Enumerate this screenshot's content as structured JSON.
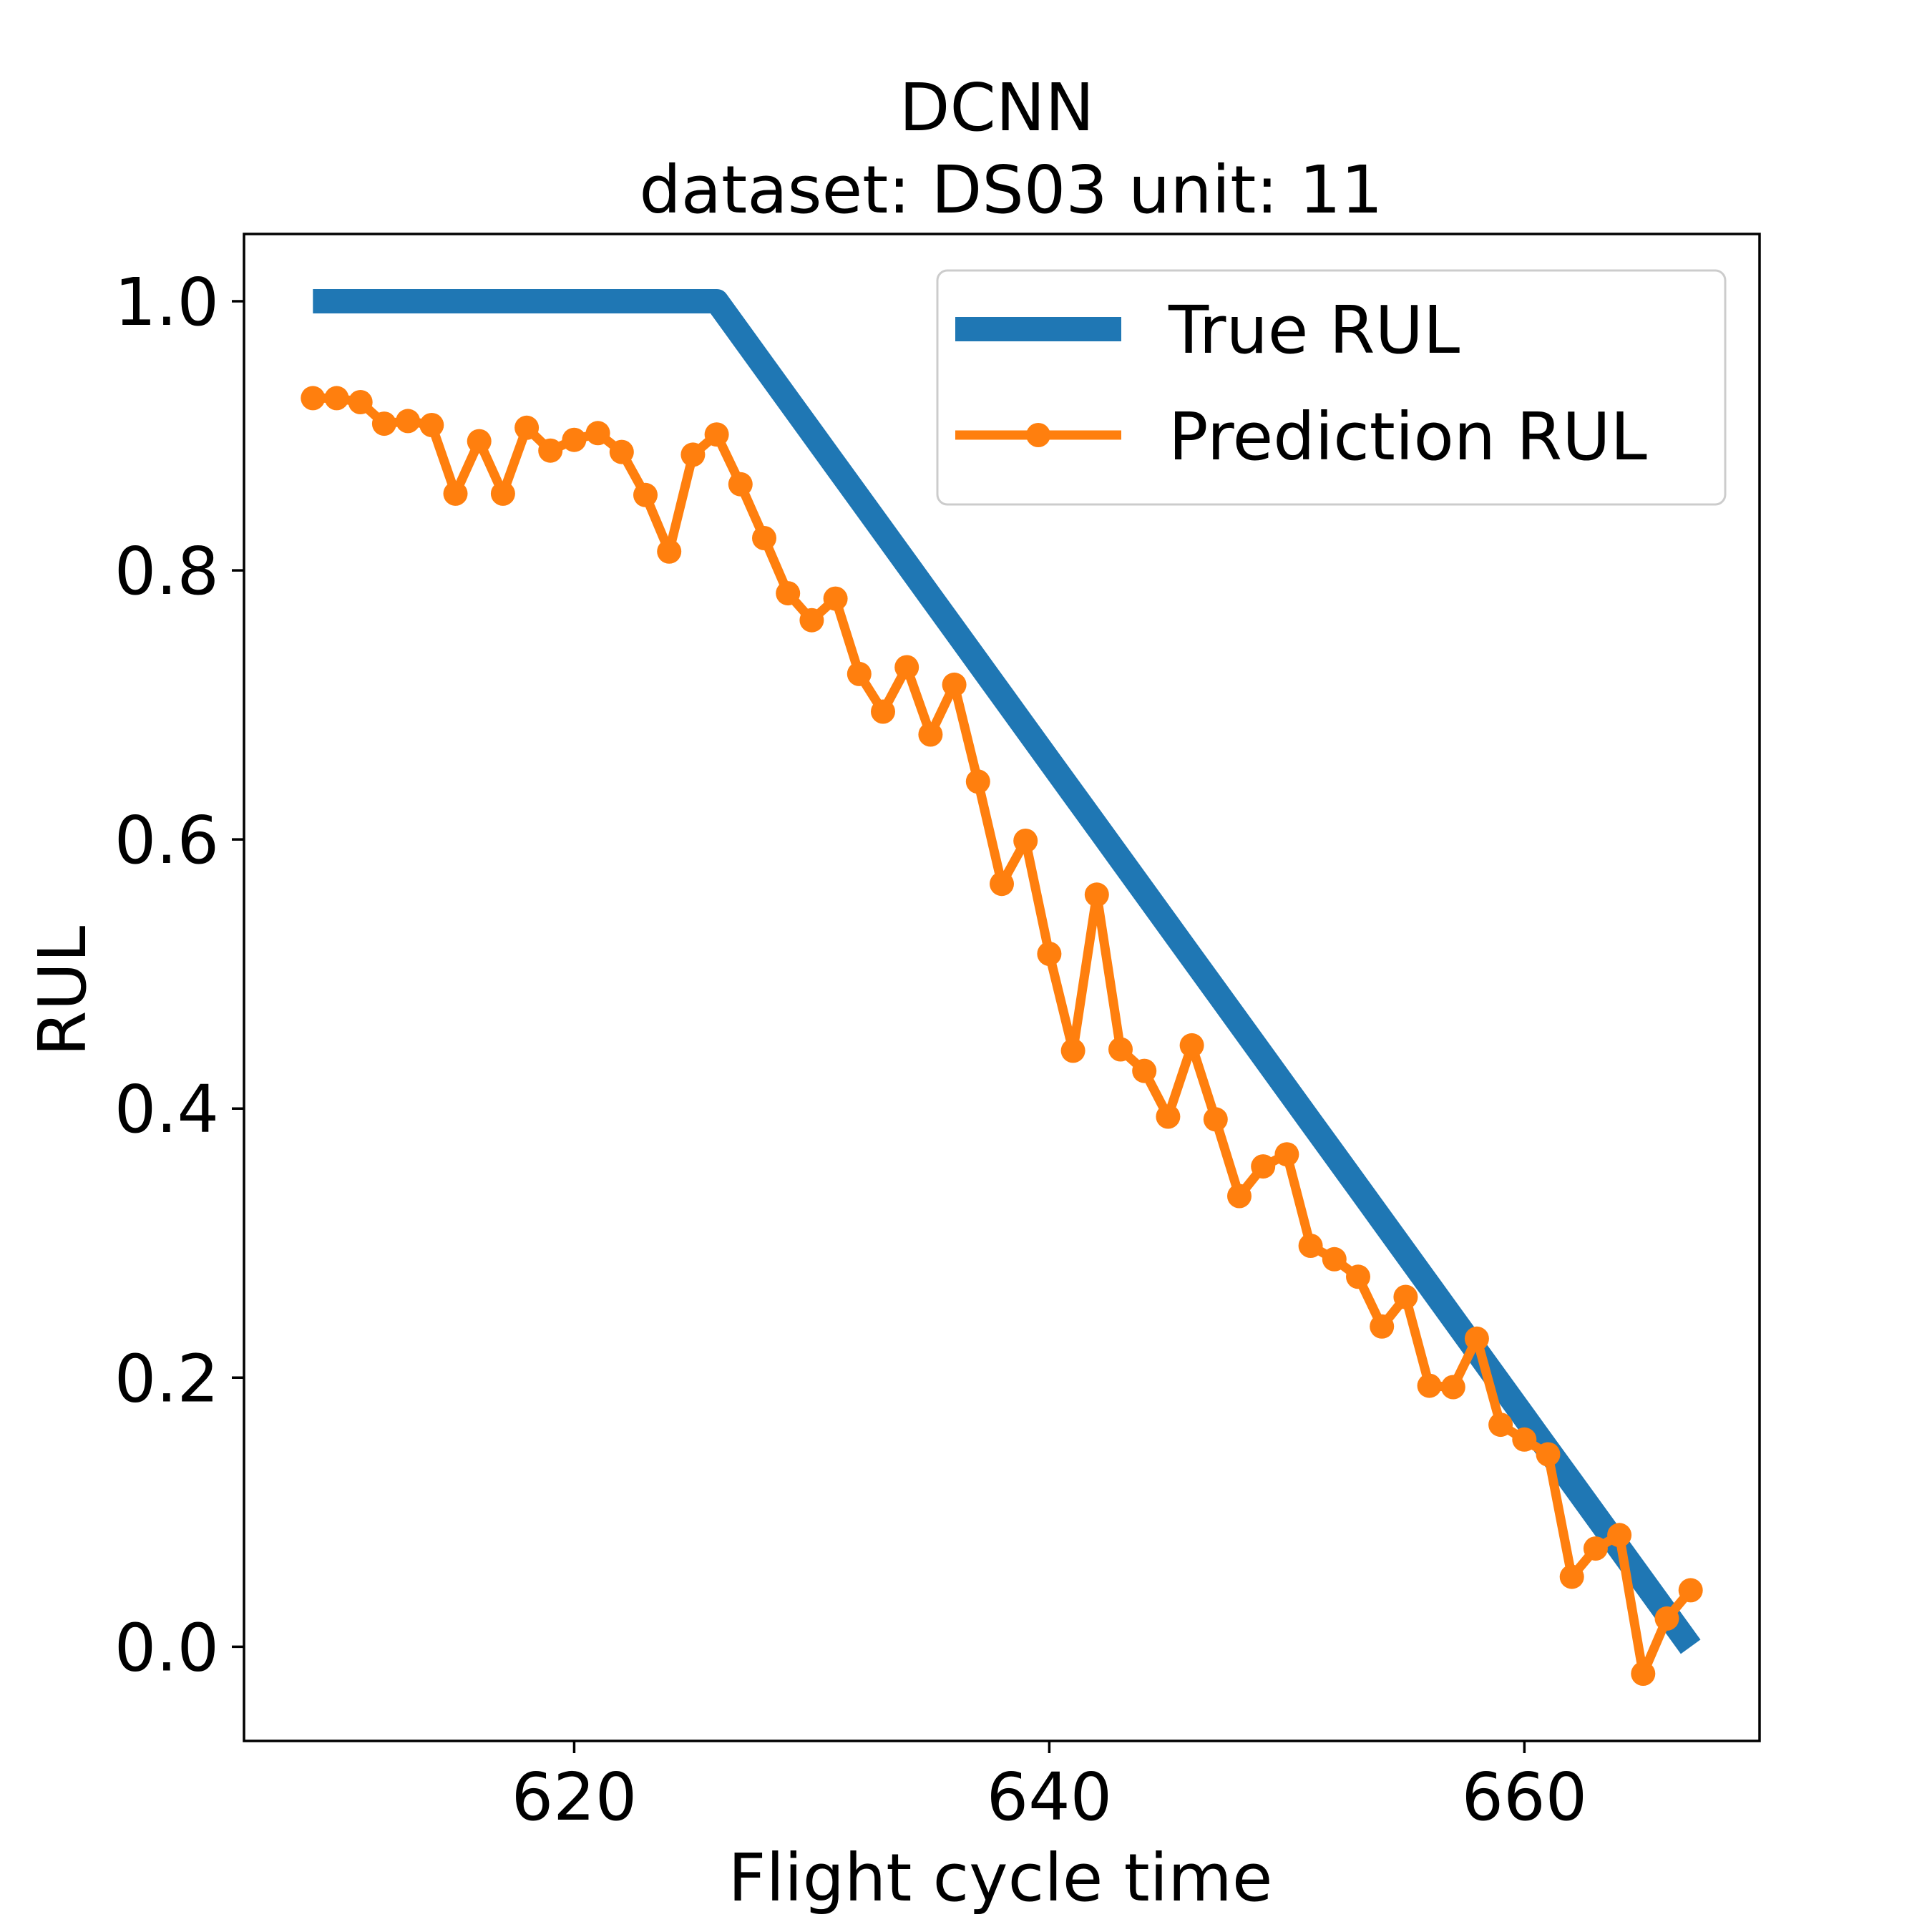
{
  "chart_data": {
    "type": "line",
    "title": "DCNN",
    "subtitle": "dataset: DS03 unit: 11",
    "xlabel": "Flight cycle time",
    "ylabel": "RUL",
    "xlim": [
      606.1,
      669.9
    ],
    "ylim": [
      -0.07,
      1.05
    ],
    "xticks": [
      620,
      640,
      660
    ],
    "xtick_labels": [
      "620",
      "640",
      "660"
    ],
    "yticks": [
      0.0,
      0.2,
      0.4,
      0.6,
      0.8,
      1.0
    ],
    "ytick_labels": [
      "0.0",
      "0.2",
      "0.4",
      "0.6",
      "0.8",
      "1.0"
    ],
    "grid": false,
    "legend_position": "upper right",
    "x": [
      609,
      610,
      611,
      612,
      613,
      614,
      615,
      616,
      617,
      618,
      619,
      620,
      621,
      622,
      623,
      624,
      625,
      626,
      627,
      628,
      629,
      630,
      631,
      632,
      633,
      634,
      635,
      636,
      637,
      638,
      639,
      640,
      641,
      642,
      643,
      644,
      645,
      646,
      647,
      648,
      649,
      650,
      651,
      652,
      653,
      654,
      655,
      656,
      657,
      658,
      659,
      660,
      661,
      662,
      663,
      664,
      665,
      666,
      667
    ],
    "series": [
      {
        "name": "True RUL",
        "color": "#1f77b4",
        "style": "line",
        "values": [
          1.0,
          1.0,
          1.0,
          1.0,
          1.0,
          1.0,
          1.0,
          1.0,
          1.0,
          1.0,
          1.0,
          1.0,
          1.0,
          1.0,
          1.0,
          1.0,
          1.0,
          1.0,
          0.9756,
          0.9512,
          0.9268,
          0.9024,
          0.878,
          0.8537,
          0.8293,
          0.8049,
          0.7805,
          0.7561,
          0.7317,
          0.7073,
          0.6829,
          0.6585,
          0.6341,
          0.6098,
          0.5854,
          0.561,
          0.5366,
          0.5122,
          0.4878,
          0.4634,
          0.439,
          0.4146,
          0.3902,
          0.3659,
          0.3415,
          0.3171,
          0.2927,
          0.2683,
          0.2439,
          0.2195,
          0.1951,
          0.1707,
          0.1463,
          0.122,
          0.0976,
          0.0732,
          0.0488,
          0.0244,
          0.0
        ]
      },
      {
        "name": "Prediction RUL",
        "color": "#ff7f0e",
        "style": "line-marker",
        "values": [
          0.928,
          0.928,
          0.925,
          0.909,
          0.911,
          0.908,
          0.857,
          0.896,
          0.857,
          0.906,
          0.889,
          0.897,
          0.902,
          0.888,
          0.856,
          0.814,
          0.886,
          0.901,
          0.864,
          0.824,
          0.783,
          0.763,
          0.779,
          0.723,
          0.695,
          0.728,
          0.678,
          0.715,
          0.643,
          0.567,
          0.599,
          0.515,
          0.443,
          0.559,
          0.444,
          0.428,
          0.394,
          0.447,
          0.392,
          0.335,
          0.357,
          0.366,
          0.298,
          0.288,
          0.275,
          0.238,
          0.26,
          0.194,
          0.193,
          0.229,
          0.165,
          0.154,
          0.143,
          0.052,
          0.073,
          0.083,
          -0.02,
          0.021,
          0.042
        ]
      }
    ]
  }
}
